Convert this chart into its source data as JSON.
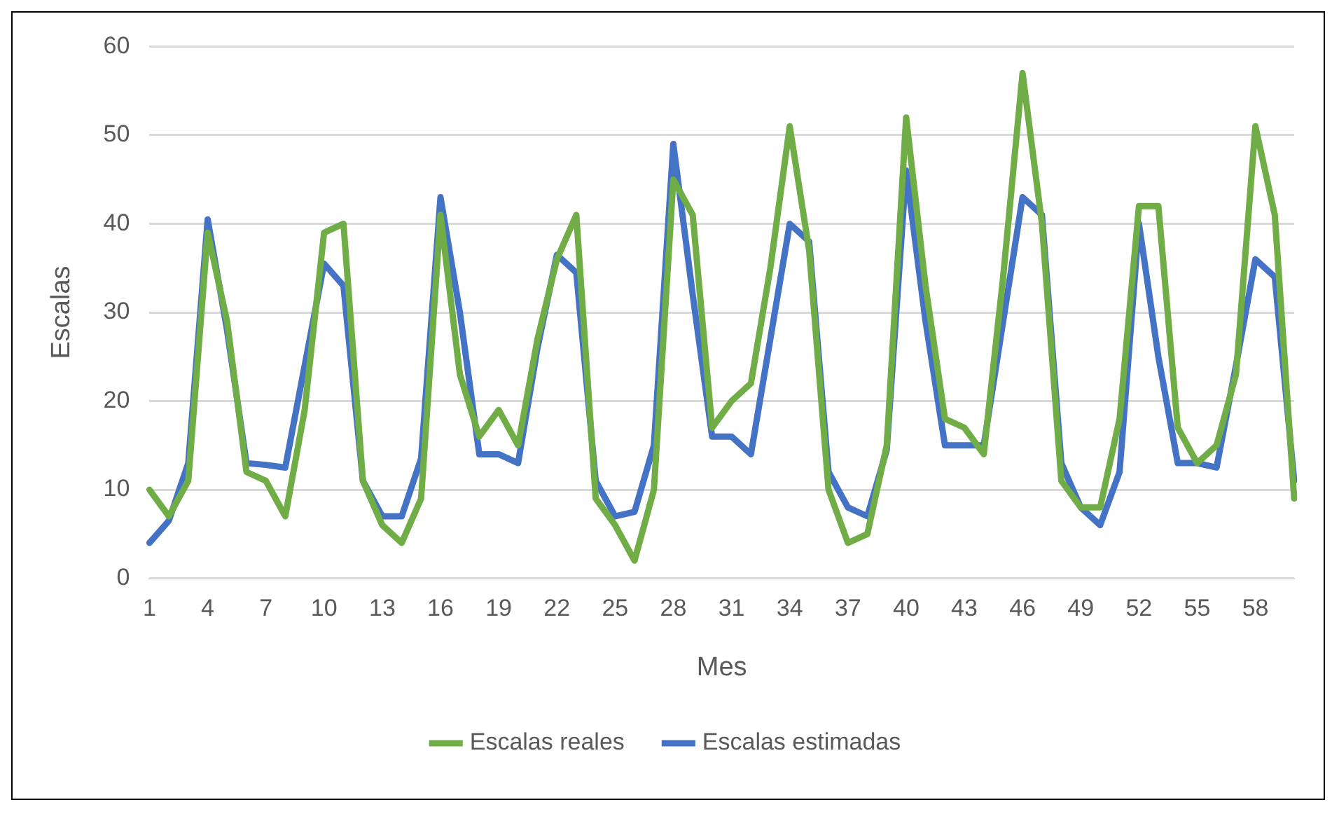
{
  "chart_data": {
    "type": "line",
    "xlabel": "Mes",
    "ylabel": "Escalas",
    "categories": [
      "1",
      null,
      null,
      "4",
      null,
      null,
      "7",
      null,
      null,
      "10",
      null,
      null,
      "13",
      null,
      null,
      "16",
      null,
      null,
      "19",
      null,
      null,
      "22",
      null,
      null,
      "25",
      null,
      null,
      "28",
      null,
      null,
      "31",
      null,
      null,
      "34",
      null,
      null,
      "37",
      null,
      null,
      "40",
      null,
      null,
      "43",
      null,
      null,
      "46",
      null,
      null,
      "49",
      null,
      null,
      "52",
      null,
      null,
      "55",
      null,
      null,
      "58",
      null,
      null
    ],
    "series": [
      {
        "name": "Escalas reales",
        "color": "#70ad47",
        "values": [
          10,
          7,
          11,
          39,
          29,
          12,
          11,
          7,
          19,
          39,
          40,
          11,
          6,
          4,
          9,
          41,
          23,
          16,
          19,
          15,
          27,
          36,
          41,
          9,
          6,
          2,
          10,
          45,
          41,
          17,
          20,
          22,
          35,
          51,
          37,
          10,
          4,
          5,
          15,
          52,
          33,
          18,
          17,
          14,
          34,
          57,
          40,
          11,
          8,
          8,
          18,
          42,
          42,
          17,
          13,
          15,
          23,
          51,
          41,
          9
        ]
      },
      {
        "name": "Escalas estimadas",
        "color": "#4472c4",
        "values": [
          4,
          6.5,
          13,
          40.5,
          28,
          13,
          12.8,
          12.5,
          24,
          35.5,
          33,
          11,
          7,
          7,
          13.5,
          43,
          30,
          14,
          14,
          13,
          26,
          36.5,
          34.5,
          11,
          7,
          7.5,
          15,
          49,
          32,
          16,
          16,
          14,
          27,
          40,
          38,
          12,
          8,
          7,
          14.5,
          46,
          29,
          15,
          15,
          15,
          29,
          43,
          41,
          13,
          8,
          6,
          12,
          40,
          25,
          13,
          13,
          12.5,
          24,
          36,
          34,
          11
        ]
      }
    ],
    "ylim": [
      0,
      60
    ],
    "yticks": [
      0,
      10,
      20,
      30,
      40,
      50,
      60
    ],
    "grid": "y",
    "legend": "bottom",
    "marker": "none",
    "line_style": "solid"
  }
}
